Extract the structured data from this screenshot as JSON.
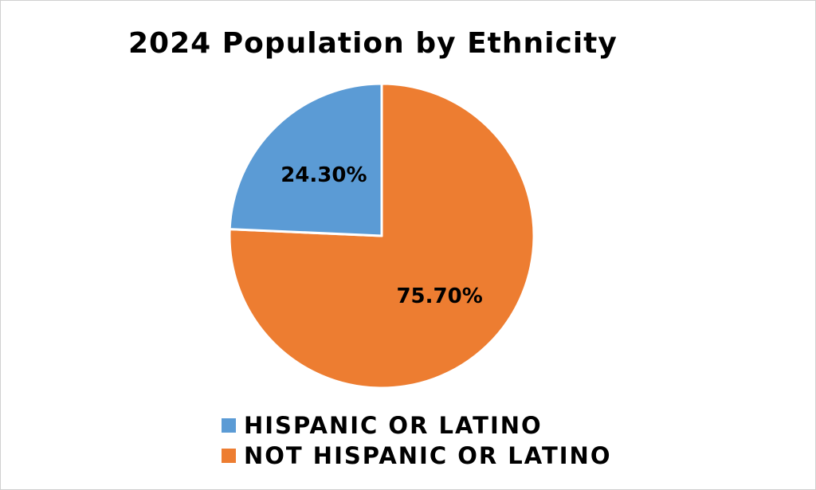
{
  "chart_data": {
    "type": "pie",
    "title": "2024 Population by Ethnicity",
    "start_angle_deg": 0,
    "slices": [
      {
        "name": "NOT HISPANIC OR LATINO",
        "value": 75.7,
        "label": "75.70%",
        "color": "#ED7D31"
      },
      {
        "name": "HISPANIC OR LATINO",
        "value": 24.3,
        "label": "24.30%",
        "color": "#5B9BD5"
      }
    ],
    "legend": {
      "position": "bottom",
      "entries": [
        {
          "name": "HISPANIC OR LATINO",
          "color": "#5B9BD5"
        },
        {
          "name": "NOT HISPANIC OR LATINO",
          "color": "#ED7D31"
        }
      ]
    }
  }
}
